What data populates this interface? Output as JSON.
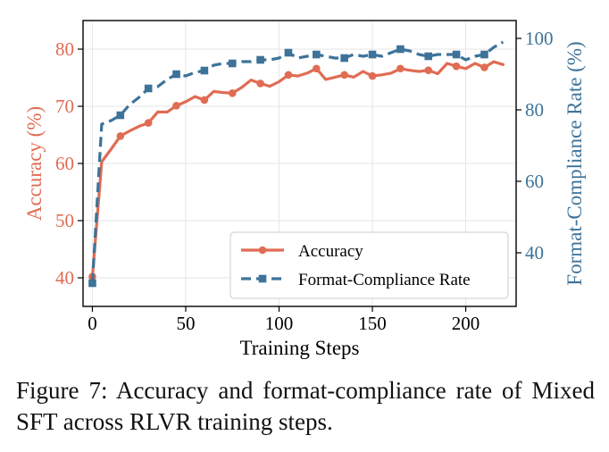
{
  "caption": {
    "label": "Figure 7:",
    "text": "Accuracy and format-compliance rate of Mixed SFT across RLVR training steps."
  },
  "colors": {
    "accuracy": "#e06c53",
    "compliance": "#3d7399",
    "grid": "#e6e6e6",
    "axis": "#000000"
  },
  "chart_data": {
    "type": "line",
    "xlabel": "Training Steps",
    "ylabel_left": "Accuracy (%)",
    "ylabel_right": "Format-Compliance Rate (%)",
    "xlim": [
      -5,
      227
    ],
    "ylim_left": [
      35,
      85
    ],
    "ylim_right": [
      25,
      105
    ],
    "x_ticks": [
      0,
      50,
      100,
      150,
      200
    ],
    "y_ticks_left": [
      40,
      50,
      60,
      70,
      80
    ],
    "y_ticks_right": [
      40,
      60,
      80,
      100
    ],
    "grid": true,
    "legend": {
      "position": "lower-right",
      "entries": [
        "Accuracy",
        "Format-Compliance Rate"
      ]
    },
    "series": [
      {
        "name": "Accuracy",
        "axis": "left",
        "line": "solid",
        "marker": "circle",
        "marker_every": 3,
        "x": [
          0,
          5,
          10,
          15,
          20,
          25,
          30,
          35,
          40,
          45,
          50,
          55,
          60,
          65,
          70,
          75,
          80,
          85,
          90,
          95,
          100,
          105,
          110,
          115,
          120,
          125,
          130,
          135,
          140,
          145,
          150,
          155,
          160,
          165,
          170,
          175,
          180,
          185,
          190,
          195,
          200,
          205,
          210,
          215,
          220
        ],
        "values": [
          40.2,
          60.3,
          62.5,
          64.8,
          65.7,
          66.5,
          67.1,
          69.0,
          69.0,
          70.1,
          70.8,
          71.7,
          71.1,
          72.6,
          72.4,
          72.3,
          73.3,
          74.6,
          74.0,
          73.5,
          74.3,
          75.5,
          75.3,
          75.8,
          76.6,
          74.7,
          75.1,
          75.5,
          75.1,
          76.1,
          75.3,
          75.5,
          75.8,
          76.6,
          76.3,
          76.1,
          76.3,
          75.7,
          77.5,
          77.0,
          76.6,
          77.5,
          76.8,
          77.8,
          77.3
        ]
      },
      {
        "name": "Format-Compliance Rate",
        "axis": "right",
        "line": "dashed",
        "marker": "square",
        "marker_every": 3,
        "x": [
          0,
          5,
          10,
          15,
          20,
          25,
          30,
          35,
          40,
          45,
          50,
          55,
          60,
          65,
          70,
          75,
          80,
          85,
          90,
          95,
          100,
          105,
          110,
          115,
          120,
          125,
          130,
          135,
          140,
          145,
          150,
          155,
          160,
          165,
          170,
          175,
          180,
          185,
          190,
          195,
          200,
          205,
          210,
          215,
          220
        ],
        "values": [
          31.5,
          76.0,
          77.0,
          78.5,
          81.5,
          83.5,
          86.0,
          86.5,
          88.5,
          90.0,
          89.5,
          90.5,
          91.0,
          92.5,
          93.0,
          93.0,
          93.5,
          93.5,
          94.0,
          94.0,
          94.5,
          96.0,
          94.5,
          95.0,
          95.5,
          95.0,
          94.5,
          94.5,
          95.5,
          95.0,
          95.5,
          95.0,
          96.0,
          97.0,
          96.5,
          95.5,
          95.0,
          95.5,
          95.5,
          95.5,
          94.0,
          95.0,
          95.5,
          97.5,
          99.0
        ]
      }
    ]
  }
}
